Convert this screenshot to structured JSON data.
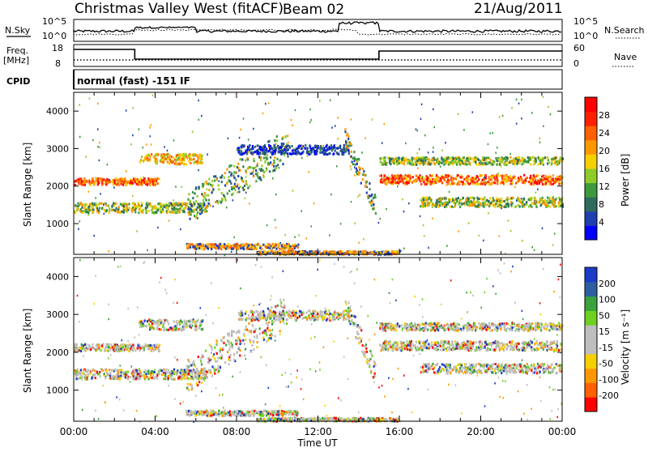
{
  "header": {
    "title": "Christmas Valley West (fitACF)",
    "beam": "Beam 02",
    "date": "21/Aug/2011"
  },
  "top_panels": {
    "nsky_label": "N.Sky",
    "nsky_ticks": [
      "10^5",
      "10^0"
    ],
    "nsearch_label": "N.Search",
    "nsearch_ticks": [
      "10^5",
      "10^0"
    ],
    "freq_label": "Freq.",
    "freq_unit": "[MHz]",
    "freq_ticks": [
      "18",
      "8"
    ],
    "nave_label": "Nave",
    "nave_ticks": [
      "60",
      "0"
    ],
    "cpid_label": "CPID",
    "cpid_text": "normal (fast) -151 IF"
  },
  "chart_data": [
    {
      "type": "heatmap",
      "name": "power",
      "ylabel": "Slant Range [km]",
      "xlabel": "Time UT",
      "x_ticks": [
        "00:00",
        "04:00",
        "08:00",
        "12:00",
        "16:00",
        "20:00",
        "00:00"
      ],
      "y_ticks": [
        "1000",
        "2000",
        "3000",
        "4000"
      ],
      "xlim_hours": [
        0,
        24
      ],
      "ylim_km": [
        180,
        4500
      ],
      "colorbar_label": "Power [dB]",
      "colorbar_ticks": [
        "28",
        "24",
        "20",
        "16",
        "12",
        "8",
        "4"
      ],
      "colorbar_colors": [
        "#0000ff",
        "#1f3fb0",
        "#2e6b5e",
        "#3c9a3c",
        "#8fcc2a",
        "#f5d000",
        "#ff9800",
        "#ff6000",
        "#ff2000",
        "#ff0000"
      ]
    },
    {
      "type": "heatmap",
      "name": "velocity",
      "ylabel": "Slant Range [km]",
      "xlabel": "Time UT",
      "x_ticks": [
        "00:00",
        "04:00",
        "08:00",
        "12:00",
        "16:00",
        "20:00",
        "00:00"
      ],
      "y_ticks": [
        "1000",
        "2000",
        "3000",
        "4000"
      ],
      "xlim_hours": [
        0,
        24
      ],
      "ylim_km": [
        180,
        4500
      ],
      "colorbar_label": "Velocity [m s⁻¹]",
      "colorbar_ticks": [
        "200",
        "100",
        "50",
        "15",
        "-15",
        "-50",
        "-100",
        "-200"
      ],
      "colorbar_colors": [
        "#ff0000",
        "#ff6000",
        "#ff9800",
        "#f5d000",
        "#bebebe",
        "#bebebe",
        "#6fd020",
        "#3ca23c",
        "#2e5fa0",
        "#1a3cc8"
      ]
    }
  ],
  "time_axis_label": "Time UT"
}
